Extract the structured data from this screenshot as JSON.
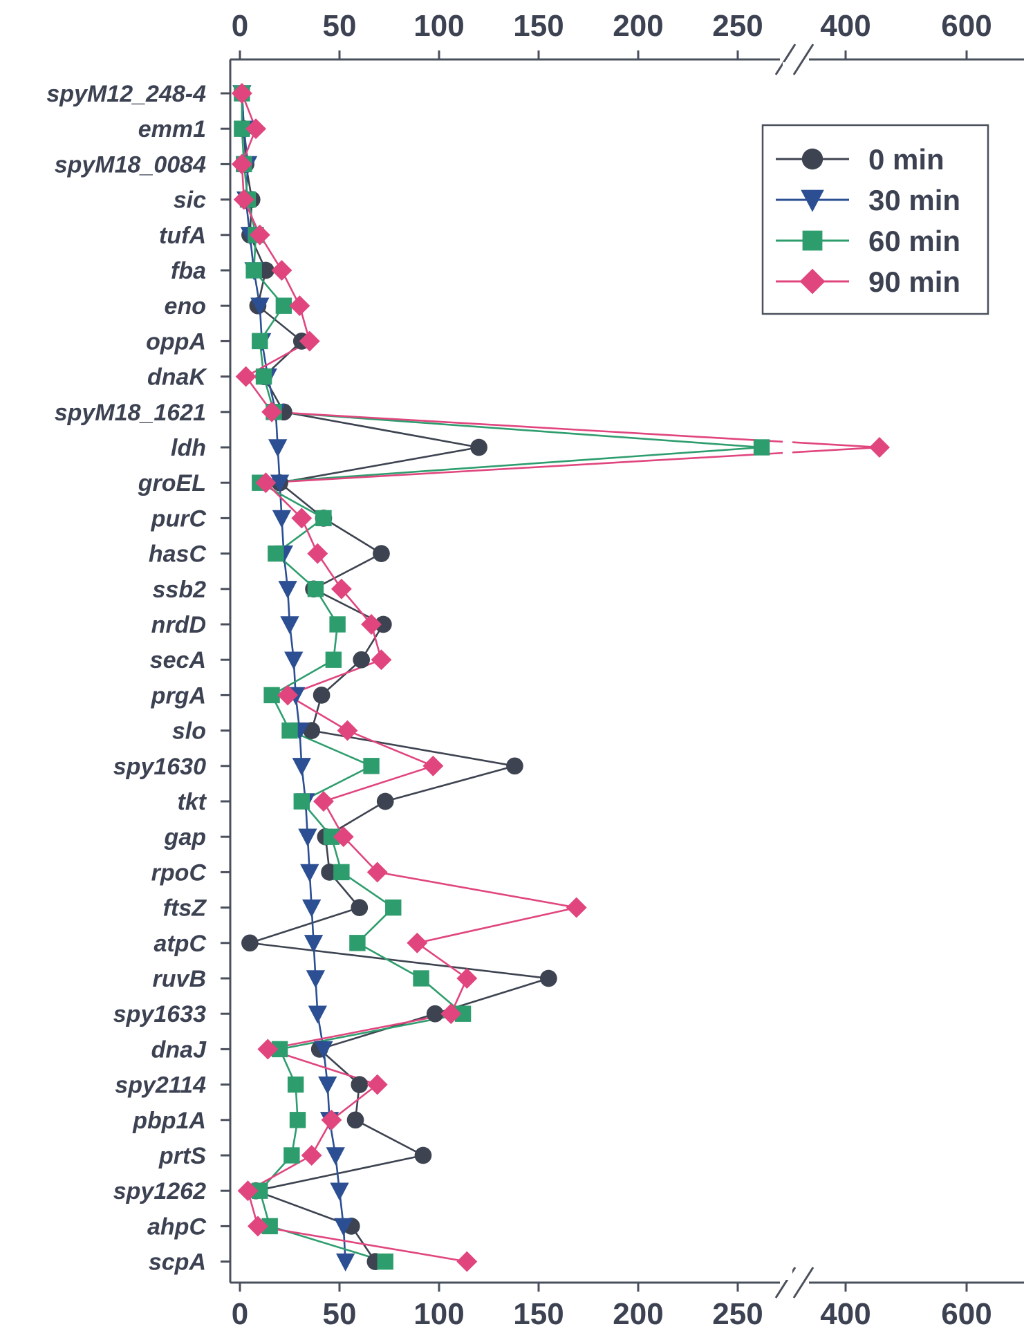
{
  "chart_data": {
    "type": "line",
    "orientation": "horizontal",
    "title": "",
    "xlabel": "",
    "ylabel": "",
    "x_axis": {
      "segments": [
        {
          "range": [
            -5,
            270
          ],
          "ticks": [
            0,
            50,
            100,
            150,
            200,
            250
          ]
        },
        {
          "range": [
            370,
            650
          ],
          "ticks": [
            400,
            600
          ]
        }
      ],
      "tick_labels": [
        "0",
        "50",
        "100",
        "150",
        "200",
        "250",
        "400",
        "600"
      ],
      "axis_break": true,
      "shown_on": [
        "top",
        "bottom"
      ]
    },
    "categories": [
      "spyM12_248-4",
      "emm1",
      "spyM18_0084",
      "sic",
      "tufA",
      "fba",
      "eno",
      "oppA",
      "dnaK",
      "spyM18_1621",
      "ldh",
      "groEL",
      "purC",
      "hasC",
      "ssb2",
      "nrdD",
      "secA",
      "prgA",
      "slo",
      "spy1630",
      "tkt",
      "gap",
      "rpoC",
      "ftsZ",
      "atpC",
      "ruvB",
      "spy1633",
      "dnaJ",
      "spy2114",
      "pbp1A",
      "prtS",
      "spy1262",
      "ahpC",
      "scpA"
    ],
    "series": [
      {
        "name": "0 min",
        "color": "#3d4350",
        "marker": "circle",
        "values": [
          1,
          2,
          3,
          6,
          5,
          13,
          9,
          31,
          12,
          22,
          120,
          20,
          42,
          71,
          37,
          72,
          61,
          41,
          36,
          138,
          73,
          43,
          45,
          60,
          5,
          155,
          98,
          40,
          60,
          58,
          92,
          8,
          56,
          68
        ]
      },
      {
        "name": "30 min",
        "color": "#2b4f92",
        "marker": "triangle-down",
        "values": [
          1,
          2,
          4,
          3,
          5,
          7,
          10,
          11,
          14,
          18,
          19,
          20,
          21,
          22,
          24,
          25,
          27,
          28,
          30,
          31,
          33,
          34,
          35,
          36,
          37,
          38,
          39,
          42,
          44,
          45,
          48,
          50,
          52,
          53
        ]
      },
      {
        "name": "60 min",
        "color": "#2e9d6e",
        "marker": "square",
        "values": [
          1,
          1,
          2,
          4,
          8,
          7,
          22,
          10,
          12,
          17,
          262,
          10,
          42,
          18,
          38,
          49,
          47,
          16,
          25,
          66,
          31,
          46,
          51,
          77,
          59,
          91,
          112,
          20,
          28,
          29,
          26,
          10,
          15,
          73
        ]
      },
      {
        "name": "90 min",
        "color": "#e0457e",
        "marker": "diamond",
        "values": [
          1,
          8,
          1,
          2,
          10,
          21,
          30,
          35,
          3,
          16,
          456,
          13,
          31,
          39,
          51,
          66,
          71,
          24,
          54,
          97,
          42,
          52,
          69,
          169,
          89,
          114,
          106,
          14,
          69,
          46,
          36,
          4,
          9,
          114
        ]
      }
    ],
    "legend": {
      "position": "top-right",
      "entries": [
        "0 min",
        "30 min",
        "60 min",
        "90 min"
      ]
    },
    "grid": false
  }
}
